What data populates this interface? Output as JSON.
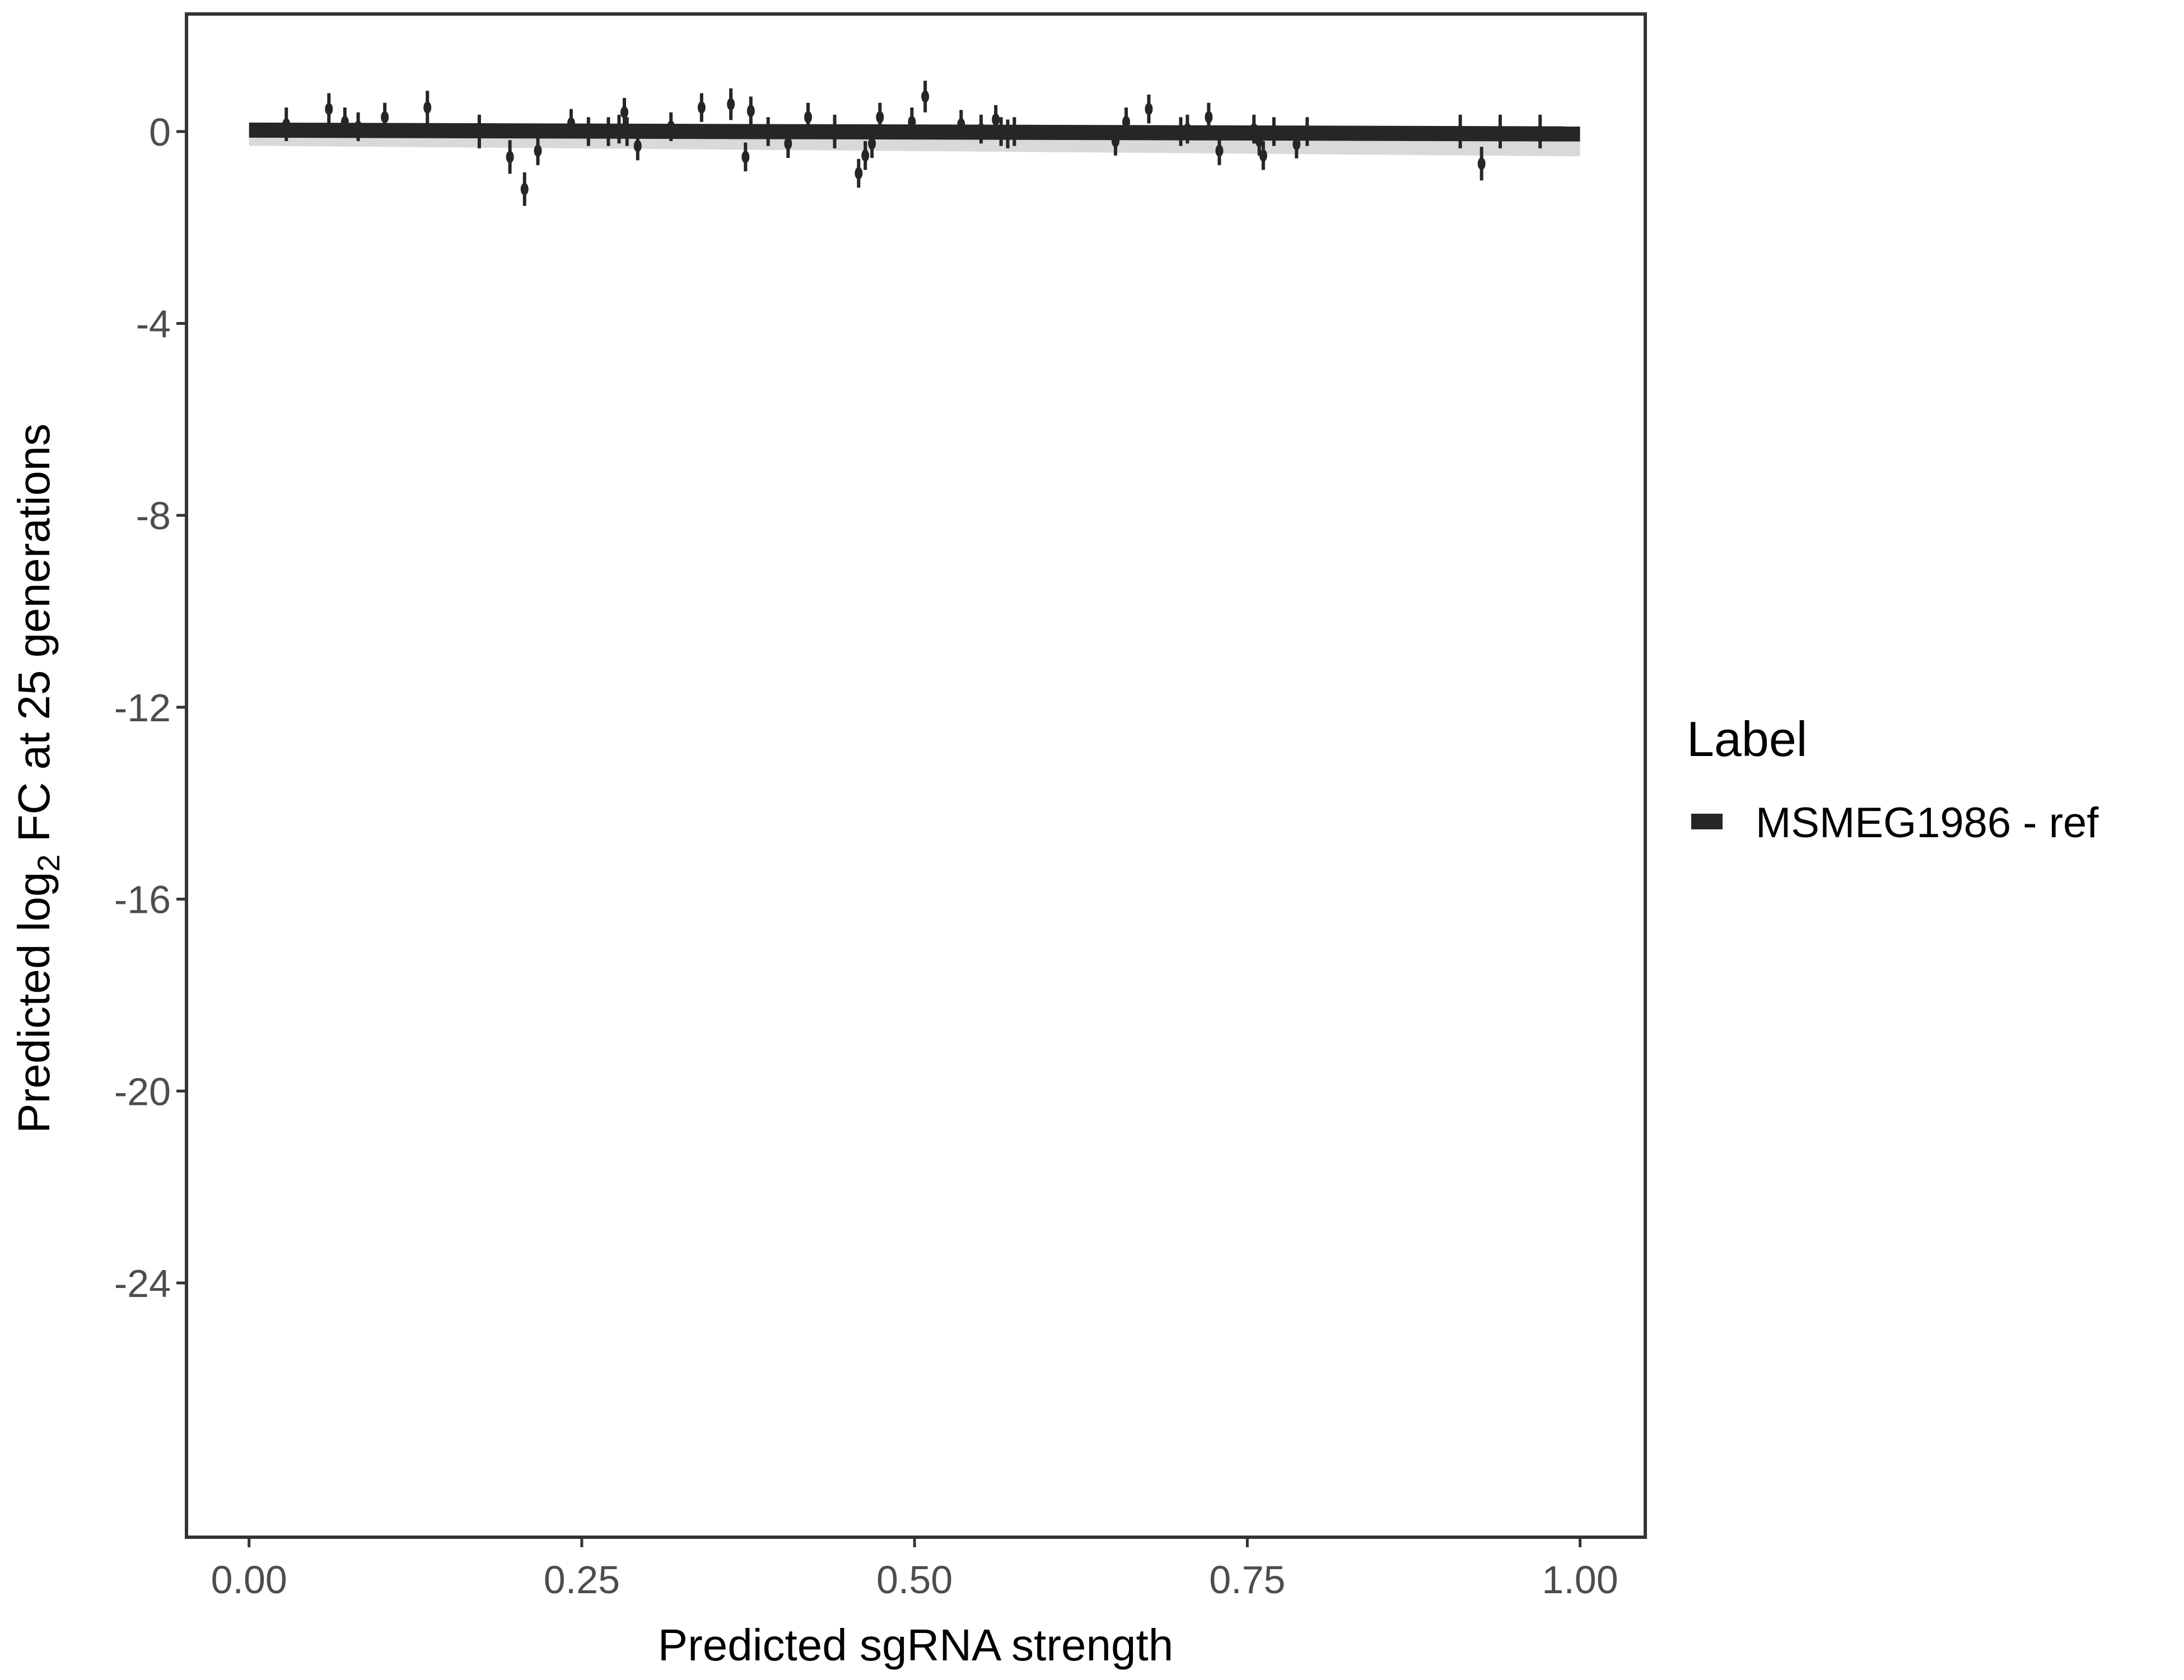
{
  "chart_data": {
    "type": "scatter",
    "title": "",
    "xlabel": "Predicted sgRNA strength",
    "ylabel_parts": [
      "Predicted  log",
      "2",
      " FC at 25 generations"
    ],
    "xlim": [
      -0.047,
      1.049
    ],
    "ylim": [
      -29.3,
      2.45
    ],
    "x_ticks": [
      0,
      0.25,
      0.5,
      0.75,
      1
    ],
    "x_tick_labels": [
      "0.00",
      "0.25",
      "0.50",
      "0.75",
      "1.00"
    ],
    "y_ticks": [
      0,
      -4,
      -8,
      -12,
      -16,
      -20,
      -24
    ],
    "y_tick_labels": [
      "0",
      "-4",
      "-8",
      "-12",
      "-16",
      "-20",
      "-24"
    ],
    "grid": false,
    "legend": {
      "title": "Label",
      "placement": "right",
      "entries": [
        "MSMEG1986 - ref"
      ]
    },
    "colors": {
      "series": "#262626",
      "ribbon": "#d9d9d9",
      "border": "#333333"
    },
    "fit_line": {
      "x": [
        0,
        1
      ],
      "y": [
        0.03,
        -0.05
      ]
    },
    "points": [
      {
        "x": 0.028,
        "y": 0.15,
        "err": 0.35
      },
      {
        "x": 0.06,
        "y": 0.47,
        "err": 0.33
      },
      {
        "x": 0.072,
        "y": 0.2,
        "err": 0.3
      },
      {
        "x": 0.082,
        "y": 0.1,
        "err": 0.3
      },
      {
        "x": 0.102,
        "y": 0.3,
        "err": 0.3
      },
      {
        "x": 0.134,
        "y": 0.5,
        "err": 0.35
      },
      {
        "x": 0.173,
        "y": 0.0,
        "err": 0.35
      },
      {
        "x": 0.196,
        "y": -0.53,
        "err": 0.35
      },
      {
        "x": 0.207,
        "y": -1.2,
        "err": 0.35
      },
      {
        "x": 0.217,
        "y": -0.4,
        "err": 0.3
      },
      {
        "x": 0.242,
        "y": 0.17,
        "err": 0.3
      },
      {
        "x": 0.255,
        "y": 0.0,
        "err": 0.3
      },
      {
        "x": 0.27,
        "y": 0.0,
        "err": 0.3
      },
      {
        "x": 0.278,
        "y": 0.05,
        "err": 0.3
      },
      {
        "x": 0.282,
        "y": 0.4,
        "err": 0.3
      },
      {
        "x": 0.284,
        "y": 0.0,
        "err": 0.3
      },
      {
        "x": 0.292,
        "y": -0.3,
        "err": 0.3
      },
      {
        "x": 0.317,
        "y": 0.1,
        "err": 0.3
      },
      {
        "x": 0.34,
        "y": 0.5,
        "err": 0.3
      },
      {
        "x": 0.362,
        "y": 0.57,
        "err": 0.33
      },
      {
        "x": 0.373,
        "y": -0.53,
        "err": 0.3
      },
      {
        "x": 0.377,
        "y": 0.43,
        "err": 0.3
      },
      {
        "x": 0.39,
        "y": 0.0,
        "err": 0.3
      },
      {
        "x": 0.405,
        "y": -0.25,
        "err": 0.3
      },
      {
        "x": 0.42,
        "y": 0.3,
        "err": 0.3
      },
      {
        "x": 0.44,
        "y": 0.0,
        "err": 0.35
      },
      {
        "x": 0.458,
        "y": -0.87,
        "err": 0.3
      },
      {
        "x": 0.463,
        "y": -0.5,
        "err": 0.3
      },
      {
        "x": 0.468,
        "y": -0.25,
        "err": 0.3
      },
      {
        "x": 0.474,
        "y": 0.3,
        "err": 0.3
      },
      {
        "x": 0.498,
        "y": 0.2,
        "err": 0.3
      },
      {
        "x": 0.508,
        "y": 0.73,
        "err": 0.33
      },
      {
        "x": 0.535,
        "y": 0.15,
        "err": 0.3
      },
      {
        "x": 0.55,
        "y": 0.05,
        "err": 0.3
      },
      {
        "x": 0.561,
        "y": 0.25,
        "err": 0.3
      },
      {
        "x": 0.565,
        "y": 0.0,
        "err": 0.3
      },
      {
        "x": 0.57,
        "y": -0.05,
        "err": 0.3
      },
      {
        "x": 0.575,
        "y": 0.0,
        "err": 0.3
      },
      {
        "x": 0.651,
        "y": -0.2,
        "err": 0.3
      },
      {
        "x": 0.659,
        "y": 0.2,
        "err": 0.3
      },
      {
        "x": 0.676,
        "y": 0.47,
        "err": 0.3
      },
      {
        "x": 0.7,
        "y": 0.0,
        "err": 0.3
      },
      {
        "x": 0.705,
        "y": 0.05,
        "err": 0.3
      },
      {
        "x": 0.721,
        "y": 0.3,
        "err": 0.3
      },
      {
        "x": 0.729,
        "y": -0.4,
        "err": 0.3
      },
      {
        "x": 0.755,
        "y": 0.05,
        "err": 0.3
      },
      {
        "x": 0.759,
        "y": -0.2,
        "err": 0.3
      },
      {
        "x": 0.762,
        "y": -0.5,
        "err": 0.3
      },
      {
        "x": 0.77,
        "y": 0.0,
        "err": 0.3
      },
      {
        "x": 0.787,
        "y": -0.26,
        "err": 0.3
      },
      {
        "x": 0.795,
        "y": 0.0,
        "err": 0.3
      },
      {
        "x": 0.91,
        "y": 0.0,
        "err": 0.35
      },
      {
        "x": 0.926,
        "y": -0.67,
        "err": 0.35
      },
      {
        "x": 0.94,
        "y": 0.0,
        "err": 0.35
      },
      {
        "x": 0.97,
        "y": 0.0,
        "err": 0.35
      }
    ]
  }
}
